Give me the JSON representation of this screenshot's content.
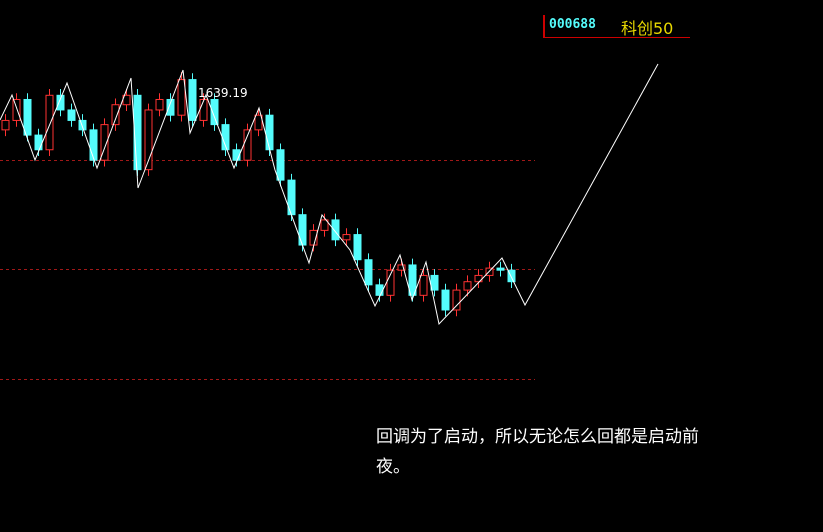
{
  "header": {
    "code": "000688",
    "name": "科创50"
  },
  "chart_data": {
    "type": "candlestick",
    "ylim": [
      1200,
      1708
    ],
    "up_color": "#ff3232",
    "down_color": "#54fcfc",
    "open": [
      1584,
      1593,
      1613,
      1579,
      1565,
      1617,
      1603,
      1593,
      1584,
      1555,
      1589,
      1608,
      1617,
      1546,
      1603,
      1613,
      1598,
      1632,
      1593,
      1613,
      1589,
      1565,
      1555,
      1584,
      1598,
      1565,
      1536,
      1503,
      1474,
      1488,
      1498,
      1479,
      1484,
      1460,
      1436,
      1426,
      1450,
      1455,
      1426,
      1445,
      1431,
      1412,
      1431,
      1439,
      1445,
      1452,
      1450
    ],
    "high": [
      1599,
      1619,
      1619,
      1585,
      1623,
      1623,
      1609,
      1599,
      1590,
      1595,
      1614,
      1623,
      1623,
      1609,
      1619,
      1619,
      1639.19,
      1638,
      1619,
      1619,
      1595,
      1571,
      1590,
      1604,
      1604,
      1571,
      1542,
      1509,
      1494,
      1504,
      1504,
      1490,
      1490,
      1466,
      1442,
      1456,
      1461,
      1461,
      1451,
      1451,
      1437,
      1437,
      1445,
      1451,
      1458,
      1458,
      1456
    ],
    "low": [
      1578,
      1587,
      1573,
      1559,
      1559,
      1597,
      1587,
      1578,
      1549,
      1549,
      1583,
      1602,
      1540,
      1540,
      1597,
      1592,
      1592,
      1587,
      1587,
      1583,
      1559,
      1549,
      1549,
      1578,
      1559,
      1530,
      1497,
      1468,
      1468,
      1482,
      1473,
      1473,
      1454,
      1430,
      1420,
      1420,
      1444,
      1420,
      1420,
      1425,
      1406,
      1406,
      1425,
      1433,
      1439,
      1444,
      1433
    ],
    "close": [
      1593,
      1613,
      1579,
      1565,
      1617,
      1603,
      1593,
      1584,
      1555,
      1589,
      1608,
      1617,
      1546,
      1603,
      1613,
      1598,
      1632,
      1593,
      1613,
      1589,
      1565,
      1555,
      1584,
      1598,
      1565,
      1536,
      1503,
      1474,
      1488,
      1498,
      1479,
      1484,
      1460,
      1436,
      1426,
      1450,
      1455,
      1426,
      1445,
      1431,
      1412,
      1431,
      1439,
      1445,
      1452,
      1450,
      1439
    ]
  },
  "caption": "回调为了启动，所以无论怎么回都是启动前夜。"
}
